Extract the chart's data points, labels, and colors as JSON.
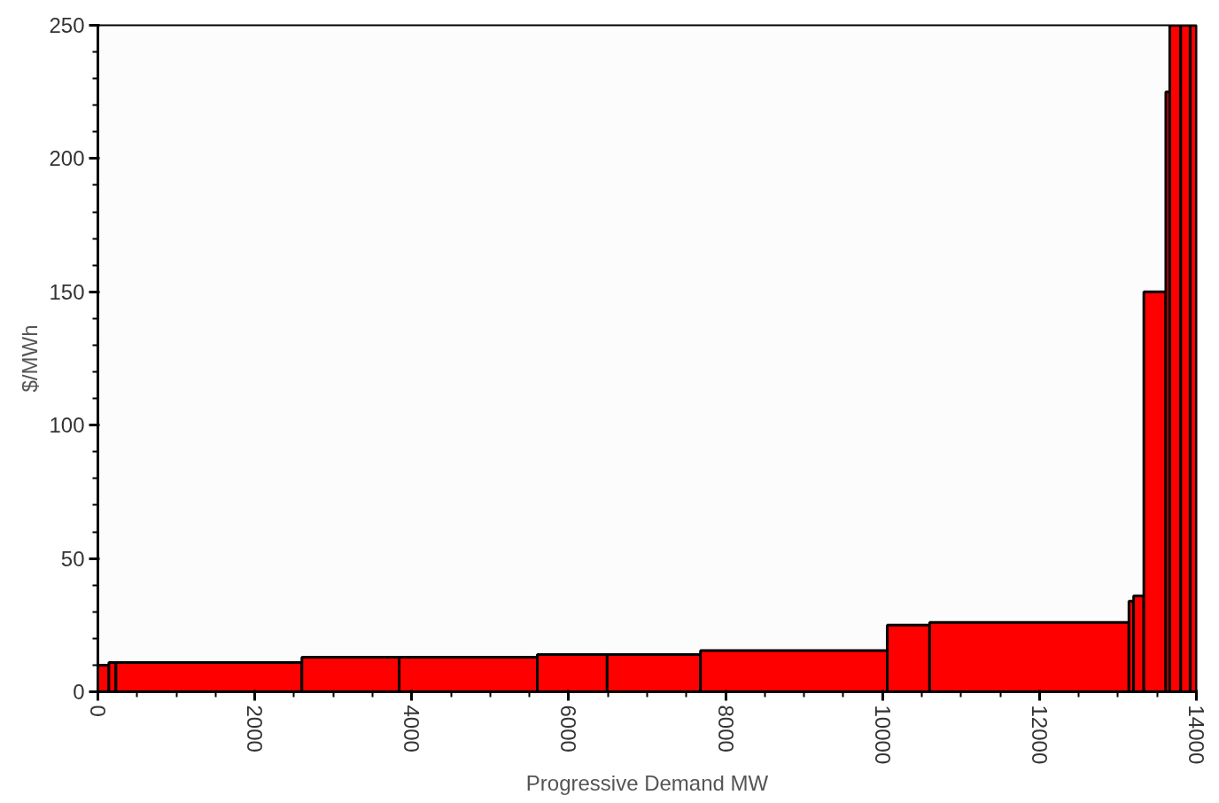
{
  "chart_data": {
    "type": "histogram",
    "xlabel": "Progressive Demand MW",
    "ylabel": "$/MWh",
    "bins": [
      0,
      140,
      230,
      2600,
      3840,
      5600,
      6490,
      7680,
      10060,
      10600,
      13140,
      13200,
      13330,
      13610,
      13660,
      13800,
      13920,
      14000
    ],
    "values": [
      10,
      11,
      11,
      13,
      13,
      14,
      14,
      15.5,
      25,
      26,
      34,
      36,
      150,
      225,
      250,
      250,
      250
    ],
    "color": "#ff0000",
    "xlim": [
      0,
      14000
    ],
    "xticks": [
      0,
      2000,
      4000,
      6000,
      8000,
      10000,
      12000,
      14000
    ],
    "ylim": [
      0,
      250
    ],
    "yticks": [
      0,
      50,
      100,
      150,
      200,
      250
    ],
    "grid": false
  }
}
